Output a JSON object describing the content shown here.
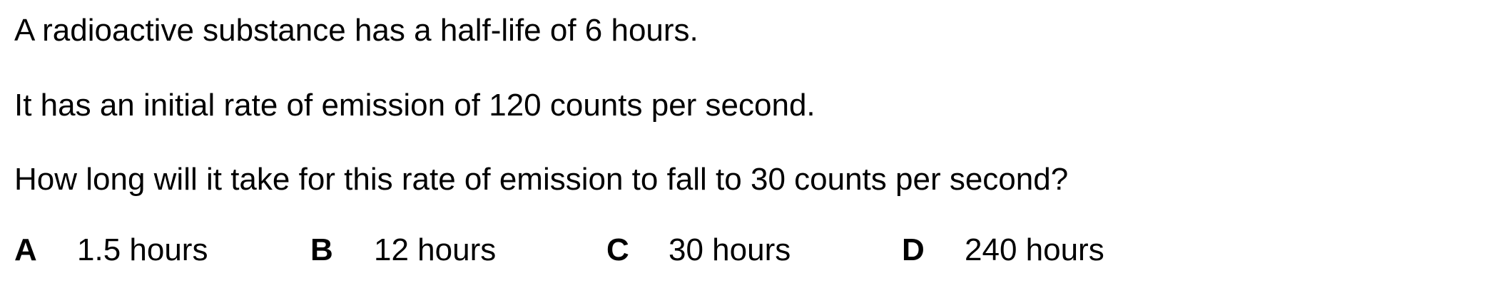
{
  "question": {
    "line1": "A radioactive substance has a half-life of 6 hours.",
    "line2": "It has an initial rate of emission of 120 counts per second.",
    "line3": "How long will it take for this rate of emission to fall to 30 counts per second?"
  },
  "options": [
    {
      "letter": "A",
      "text": "1.5 hours"
    },
    {
      "letter": "B",
      "text": "12 hours"
    },
    {
      "letter": "C",
      "text": "30 hours"
    },
    {
      "letter": "D",
      "text": "240 hours"
    }
  ]
}
